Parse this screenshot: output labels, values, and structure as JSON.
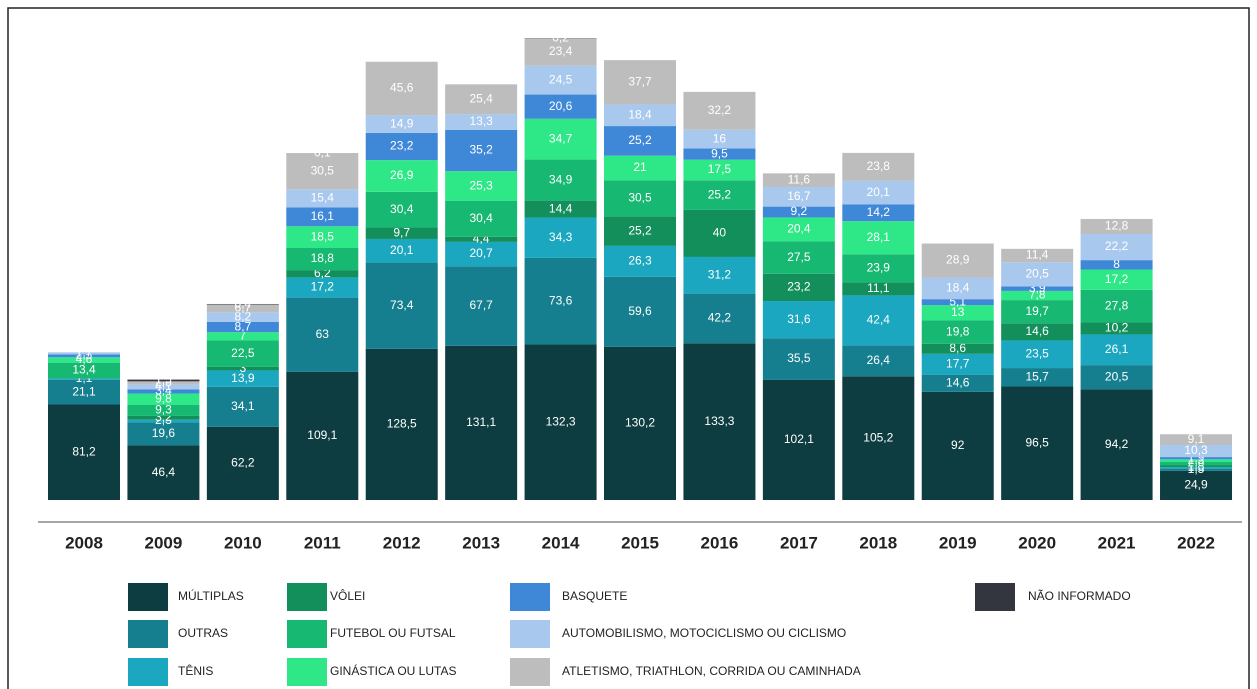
{
  "chart_data": {
    "type": "stacked_bar",
    "categories": [
      "2008",
      "2009",
      "2010",
      "2011",
      "2012",
      "2013",
      "2014",
      "2015",
      "2016",
      "2017",
      "2018",
      "2019",
      "2020",
      "2021",
      "2022"
    ],
    "series": [
      {
        "name": "MÚLTIPLAS",
        "color": "#0d3d40",
        "values": [
          81.2,
          46.4,
          62.2,
          109.1,
          128.5,
          131.1,
          132.3,
          130.2,
          133.3,
          102.1,
          105.2,
          92,
          96.5,
          94.2,
          24.9
        ],
        "value_labels": [
          "81,2",
          "46,4",
          "62,2",
          "109,1",
          "128,5",
          "131,1",
          "132,3",
          "130,2",
          "133,3",
          "102,1",
          "105,2",
          "92",
          "96,5",
          "94,2",
          "24,9"
        ]
      },
      {
        "name": "OUTRAS",
        "color": "#167f8f",
        "values": [
          21.1,
          19.6,
          34.1,
          63,
          73.4,
          67.7,
          73.6,
          59.6,
          42.2,
          35.5,
          26.4,
          14.6,
          15.7,
          20.5,
          1.5
        ],
        "value_labels": [
          "21,1",
          "19,6",
          "34,1",
          "63",
          "73,4",
          "67,7",
          "73,6",
          "59,6",
          "42,2",
          "35,5",
          "26,4",
          "14,6",
          "15,7",
          "20,5",
          "1,5"
        ]
      },
      {
        "name": "TÊNIS",
        "color": "#1aa7bf",
        "values": [
          1.1,
          2.3,
          13.9,
          17.2,
          20.1,
          20.7,
          34.3,
          26.3,
          31.2,
          31.6,
          42.4,
          17.7,
          23.5,
          26.1,
          1.5
        ],
        "value_labels": [
          "1,1",
          "2,3",
          "13,9",
          "17,2",
          "20,1",
          "20,7",
          "34,3",
          "26,3",
          "31,2",
          "31,6",
          "42,4",
          "17,7",
          "23,5",
          "26,1",
          "1,5"
        ]
      },
      {
        "name": "VÔLEI",
        "color": "#138f5c",
        "values": [
          null,
          3.2,
          3,
          6.2,
          9.7,
          4.4,
          14.4,
          25.2,
          40,
          23.2,
          11.1,
          8.6,
          14.6,
          10.2,
          1.8
        ],
        "value_labels": [
          null,
          "3,2",
          "3",
          "6,2",
          "9,7",
          "4,4",
          "14,4",
          "25,2",
          "40",
          "23,2",
          "11,1",
          "8,6",
          "14,6",
          "10,2",
          "1,8"
        ]
      },
      {
        "name": "FUTEBOL OU FUTSAL",
        "color": "#17b872",
        "values": [
          13.4,
          9.3,
          22.5,
          18.8,
          30.4,
          30.4,
          34.9,
          30.5,
          25.2,
          27.5,
          23.9,
          19.8,
          19.7,
          27.8,
          2.6
        ],
        "value_labels": [
          "13,4",
          "9,3",
          "22,5",
          "18,8",
          "30,4",
          "30,4",
          "34,9",
          "30,5",
          "25,2",
          "27,5",
          "23,9",
          "19,8",
          "19,7",
          "27,8",
          "2,6"
        ]
      },
      {
        "name": "GINÁSTICA OU LUTAS",
        "color": "#2ee887",
        "values": [
          4.6,
          9.8,
          7,
          18.5,
          26.9,
          25.3,
          34.7,
          21,
          17.5,
          20.4,
          28.1,
          13,
          7.8,
          17.2,
          2.3
        ],
        "value_labels": [
          "4,6",
          "9,8",
          "7",
          "18,5",
          "26,9",
          "25,3",
          "34,7",
          "21",
          "17,5",
          "20,4",
          "28,1",
          "13",
          "7,8",
          "17,2",
          "2,3"
        ]
      },
      {
        "name": "BASQUETE",
        "color": "#3f88d8",
        "values": [
          2.5,
          3.4,
          8.7,
          16.1,
          23.2,
          35.2,
          20.6,
          25.2,
          9.5,
          9.2,
          14.2,
          5.1,
          3.9,
          8,
          1.9
        ],
        "value_labels": [
          "2,5",
          "3,4",
          "8,7",
          "16,1",
          "23,2",
          "35,2",
          "20,6",
          "25,2",
          "9,5",
          "9,2",
          "14,2",
          "5,1",
          "3,9",
          "8",
          "1,9"
        ]
      },
      {
        "name": "AUTOMOBILISMO, MOTOCICLISMO OU CICLISMO",
        "color": "#a8c8ee",
        "values": [
          1.7,
          4.1,
          8.2,
          15.4,
          14.9,
          13.3,
          24.5,
          18.4,
          16,
          16.7,
          20.1,
          18.4,
          20.5,
          22.2,
          10.3
        ],
        "value_labels": [
          "1,7",
          "4,1",
          "8,2",
          "15,4",
          "14,9",
          "13,3",
          "24,5",
          "18,4",
          "16",
          "16,7",
          "20,1",
          "18,4",
          "20,5",
          "22,2",
          "10,3"
        ]
      },
      {
        "name": "ATLETISMO, TRIATHLON, CORRIDA OU CAMINHADA",
        "color": "#bdbdbd",
        "values": [
          null,
          2.8,
          6.7,
          30.5,
          45.6,
          25.4,
          23.4,
          37.7,
          32.2,
          11.6,
          23.8,
          28.9,
          11.4,
          12.8,
          9.1
        ],
        "value_labels": [
          null,
          "2,8",
          "6,7",
          "30,5",
          "45,6",
          "25,4",
          "23,4",
          "37,7",
          "32,2",
          "11,6",
          "23,8",
          "28,9",
          "11,4",
          "12,8",
          "9,1"
        ]
      },
      {
        "name": "NÃO INFORMADO",
        "color": "#33363f",
        "values": [
          null,
          1.5,
          0.4,
          0.1,
          null,
          null,
          0.2,
          null,
          null,
          null,
          null,
          null,
          null,
          null,
          null
        ],
        "value_labels": [
          null,
          "1,5",
          "0,4",
          "0,1",
          null,
          null,
          "0,2",
          null,
          null,
          null,
          null,
          null,
          null,
          null,
          null
        ]
      }
    ]
  }
}
